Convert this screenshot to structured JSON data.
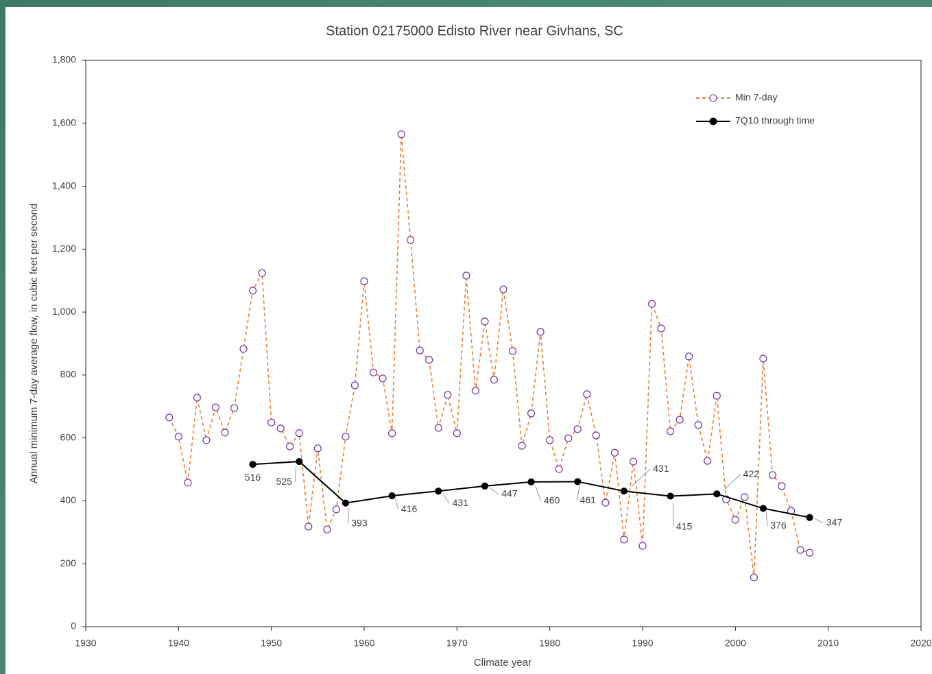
{
  "chart_data": {
    "type": "line",
    "title": "Station 02175000 Edisto River near Givhans, SC",
    "xlabel": "Climate year",
    "ylabel": "Annual minimum 7-day average flow, in cubic feet per second",
    "xlim": [
      1930,
      2020
    ],
    "xticks": [
      1930,
      1940,
      1950,
      1960,
      1970,
      1980,
      1990,
      2000,
      2010,
      2020
    ],
    "ylim": [
      0,
      1800
    ],
    "yticks": [
      0,
      200,
      400,
      600,
      800,
      {
        "value": 1000,
        "label": "1,000"
      },
      {
        "value": 1200,
        "label": "1,200"
      },
      {
        "value": 1400,
        "label": "1,400"
      },
      {
        "value": 1600,
        "label": "1,600"
      },
      {
        "value": 1800,
        "label": "1,800"
      }
    ],
    "legend": "upper right",
    "series": [
      {
        "name": "Min 7-day",
        "color": "#ed7d31",
        "marker_color": "#7030a0",
        "dashed": true,
        "marker_fill": false,
        "x": [
          1939,
          1940,
          1941,
          1942,
          1943,
          1944,
          1945,
          1946,
          1947,
          1948,
          1949,
          1950,
          1951,
          1952,
          1953,
          1954,
          1955,
          1956,
          1957,
          1958,
          1959,
          1960,
          1961,
          1962,
          1963,
          1964,
          1965,
          1966,
          1967,
          1968,
          1969,
          1970,
          1971,
          1972,
          1973,
          1974,
          1975,
          1976,
          1977,
          1978,
          1979,
          1980,
          1981,
          1982,
          1983,
          1984,
          1985,
          1986,
          1987,
          1988,
          1989,
          1990,
          1991,
          1992,
          1993,
          1994,
          1995,
          1996,
          1997,
          1998,
          1999,
          2000,
          2001,
          2002,
          2003,
          2004,
          2005,
          2006,
          2007,
          2008
        ],
        "values": [
          665,
          604,
          458,
          728,
          593,
          697,
          617,
          695,
          883,
          1068,
          1124,
          649,
          630,
          573,
          615,
          318,
          567,
          309,
          373,
          604,
          767,
          1098,
          808,
          789,
          615,
          1565,
          1229,
          878,
          848,
          632,
          737,
          615,
          1116,
          750,
          970,
          785,
          1072,
          876,
          575,
          678,
          937,
          593,
          501,
          599,
          628,
          739,
          608,
          394,
          553,
          277,
          525,
          257,
          1026,
          948,
          621,
          658,
          859,
          641,
          527,
          734,
          405,
          340,
          412,
          157,
          852,
          482,
          447,
          368,
          244,
          235
        ]
      },
      {
        "name": "7Q10 through time",
        "color": "#000000",
        "marker_color": "#000000",
        "dashed": false,
        "marker_fill": true,
        "show_labels": true,
        "x": [
          1948,
          1953,
          1958,
          1963,
          1968,
          1973,
          1978,
          1983,
          1988,
          1993,
          1998,
          2003,
          2008
        ],
        "values": [
          516,
          525,
          393,
          416,
          431,
          447,
          460,
          461,
          431,
          415,
          422,
          376,
          347
        ]
      }
    ]
  }
}
